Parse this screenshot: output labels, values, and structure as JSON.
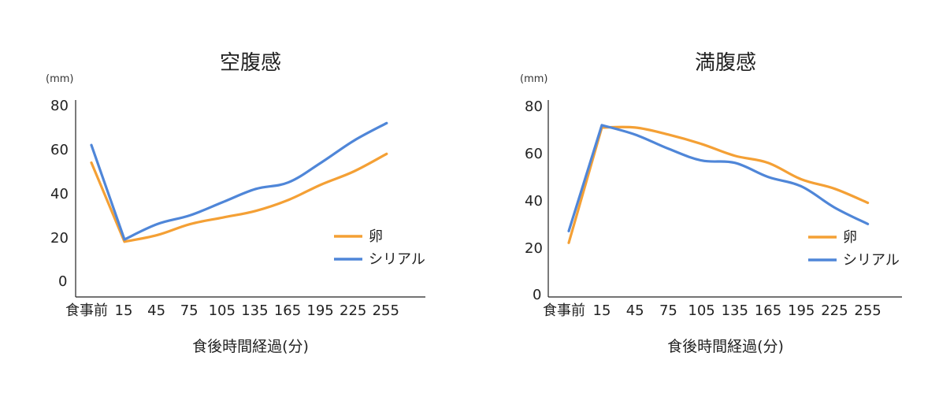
{
  "chart_data": [
    {
      "type": "line",
      "title": "空腹感",
      "unit": "(mm)",
      "xlabel": "食後時間経過(分)",
      "ylabel": "",
      "categories": [
        "食事前",
        "15",
        "45",
        "75",
        "105",
        "135",
        "165",
        "195",
        "225",
        "255"
      ],
      "yticks": [
        "0",
        "20",
        "40",
        "60",
        "80"
      ],
      "ylim": [
        0,
        80
      ],
      "legend_position": "right",
      "series": [
        {
          "name": "卵",
          "color": "#F4A035",
          "values": [
            54,
            18,
            21,
            26,
            29,
            32,
            37,
            44,
            50,
            58
          ]
        },
        {
          "name": "シリアル",
          "color": "#4F86D8",
          "values": [
            62,
            19,
            26,
            30,
            36,
            42,
            45,
            54,
            64,
            72
          ]
        }
      ]
    },
    {
      "type": "line",
      "title": "満腹感",
      "unit": "(mm)",
      "xlabel": "食後時間経過(分)",
      "ylabel": "",
      "categories": [
        "食事前",
        "15",
        "45",
        "75",
        "105",
        "135",
        "165",
        "195",
        "225",
        "255"
      ],
      "yticks": [
        "0",
        "20",
        "40",
        "60",
        "80"
      ],
      "ylim": [
        0,
        80
      ],
      "legend_position": "right",
      "series": [
        {
          "name": "卵",
          "color": "#F4A035",
          "values": [
            22,
            71,
            71,
            68,
            64,
            59,
            56,
            49,
            45,
            39
          ]
        },
        {
          "name": "シリアル",
          "color": "#4F86D8",
          "values": [
            27,
            72,
            68,
            62,
            57,
            56,
            50,
            46,
            37,
            30
          ]
        }
      ]
    }
  ]
}
